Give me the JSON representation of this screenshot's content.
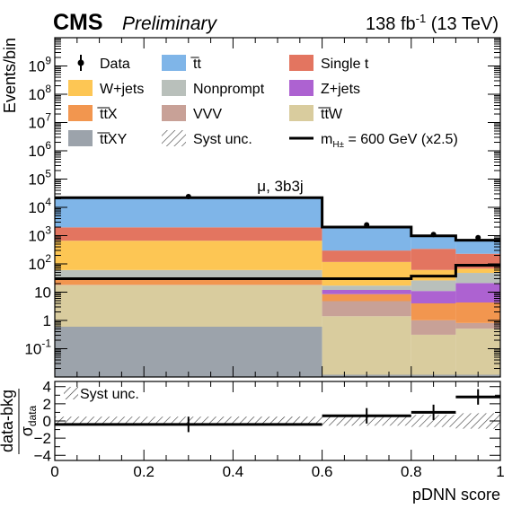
{
  "header": {
    "experiment": "CMS",
    "status": "Preliminary",
    "lumi_value": "138 fb",
    "lumi_exp": "-1",
    "lumi_energy": " (13 TeV)"
  },
  "chart_data": {
    "type": "bar",
    "subtype": "stacked-histogram",
    "channel_label": "μ, 3b3j",
    "xlabel": "pDNN score",
    "ylabel": "Events/bin",
    "xlim": [
      0,
      1
    ],
    "ylim": [
      0.01,
      10000000000
    ],
    "yscale": "log",
    "x_ticks": [
      {
        "value": 0,
        "label": "0"
      },
      {
        "value": 0.2,
        "label": "0.2"
      },
      {
        "value": 0.4,
        "label": "0.4"
      },
      {
        "value": 0.6,
        "label": "0.6"
      },
      {
        "value": 0.8,
        "label": "0.8"
      },
      {
        "value": 1,
        "label": "1"
      }
    ],
    "y_ticks": [
      {
        "value": 0.1,
        "label": "10",
        "exp": "-1"
      },
      {
        "value": 1,
        "label": "1",
        "exp": ""
      },
      {
        "value": 10,
        "label": "10",
        "exp": ""
      },
      {
        "value": 100,
        "label": "10",
        "exp": "2"
      },
      {
        "value": 1000,
        "label": "10",
        "exp": "3"
      },
      {
        "value": 10000,
        "label": "10",
        "exp": "4"
      },
      {
        "value": 100000,
        "label": "10",
        "exp": "5"
      },
      {
        "value": 1000000,
        "label": "10",
        "exp": "6"
      },
      {
        "value": 10000000,
        "label": "10",
        "exp": "7"
      },
      {
        "value": 100000000,
        "label": "10",
        "exp": "8"
      },
      {
        "value": 1000000000,
        "label": "10",
        "exp": "9"
      }
    ],
    "bins": [
      [
        0,
        0.6
      ],
      [
        0.6,
        0.8
      ],
      [
        0.8,
        0.9
      ],
      [
        0.9,
        1.0
      ]
    ],
    "stack": [
      {
        "name": "t̅t̅XY",
        "color": "#9ca3ab",
        "values": [
          0.6,
          0.012,
          0.012,
          0.012
        ]
      },
      {
        "name": "t̅t̅W",
        "color": "#d9cc9e",
        "values": [
          17,
          1.4,
          0.3,
          0.5
        ]
      },
      {
        "name": "VVV",
        "color": "#c8a197",
        "values": [
          0.5,
          3.4,
          0.7,
          0.3
        ]
      },
      {
        "name": "t̅t̅X",
        "color": "#f2964f",
        "values": [
          14,
          3.7,
          3.0,
          3.5
        ]
      },
      {
        "name": "Z+jets",
        "color": "#ad62d1",
        "values": [
          0.5,
          3.5,
          7.0,
          16.7
        ]
      },
      {
        "name": "Nonprompt",
        "color": "#b9c0bb",
        "values": [
          28,
          5,
          15,
          27
        ]
      },
      {
        "name": "W+jets",
        "color": "#fdc654",
        "values": [
          600,
          100,
          35,
          20
        ]
      },
      {
        "name": "Single t",
        "color": "#e37560",
        "values": [
          1300,
          180,
          280,
          160
        ]
      },
      {
        "name": "t̅t",
        "color": "#7fb5e8",
        "values": [
          20000,
          1700,
          640,
          460
        ]
      }
    ],
    "signal": {
      "name": "m",
      "sub": "H±",
      "rest": " = 600 GeV (x2.5)",
      "color": "#000000",
      "values": [
        30,
        30,
        37,
        90
      ]
    },
    "data": {
      "name": "Data",
      "x": [
        0.3,
        0.7,
        0.85,
        0.95
      ],
      "values": [
        24000,
        2400,
        1100,
        850
      ]
    },
    "legend": {
      "placement": "top",
      "entries": [
        {
          "label": "Data",
          "kind": "data"
        },
        {
          "label": "t̅t",
          "kind": "fill",
          "color": "#7fb5e8"
        },
        {
          "label": "Single t",
          "kind": "fill",
          "color": "#e37560"
        },
        {
          "label": "W+jets",
          "kind": "fill",
          "color": "#fdc654"
        },
        {
          "label": "Nonprompt",
          "kind": "fill",
          "color": "#b9c0bb"
        },
        {
          "label": "Z+jets",
          "kind": "fill",
          "color": "#ad62d1"
        },
        {
          "label": "t̅t̅X",
          "kind": "fill",
          "color": "#f2964f"
        },
        {
          "label": "VVV",
          "kind": "fill",
          "color": "#c8a197"
        },
        {
          "label": "t̅t̅W",
          "kind": "fill",
          "color": "#d9cc9e"
        },
        {
          "label": "t̅t̅XY",
          "kind": "fill",
          "color": "#9ca3ab"
        },
        {
          "label": "Syst unc.",
          "kind": "hatch"
        },
        {
          "label": "m",
          "sub": "H±",
          "rest": " = 600 GeV (x2.5)",
          "kind": "line"
        }
      ]
    },
    "ratio": {
      "ylabel_top": "data-bkg",
      "ylabel_bottom": "σ",
      "ylabel_sub": "data",
      "ylim": [
        -4.6,
        4.6
      ],
      "y_ticks": [
        {
          "value": -4,
          "label": "−4"
        },
        {
          "value": -2,
          "label": "−2"
        },
        {
          "value": 0,
          "label": "0"
        },
        {
          "value": 2,
          "label": "2"
        },
        {
          "value": 4,
          "label": "4"
        }
      ],
      "hatch_label": "Syst unc.",
      "hatch_bins": [
        [
          0,
          0.6,
          -0.5,
          0.5
        ],
        [
          0.6,
          0.8,
          -0.55,
          0.55
        ],
        [
          0.8,
          0.9,
          -0.7,
          0.7
        ],
        [
          0.9,
          1.0,
          -0.9,
          0.9
        ]
      ],
      "points": [
        {
          "x": 0.3,
          "xerr": 0.3,
          "y": -0.4,
          "yerr": 0.9
        },
        {
          "x": 0.7,
          "xerr": 0.1,
          "y": 0.6,
          "yerr": 0.9
        },
        {
          "x": 0.85,
          "xerr": 0.05,
          "y": 1.0,
          "yerr": 0.9
        },
        {
          "x": 0.95,
          "xerr": 0.05,
          "y": 2.8,
          "yerr": 0.9
        }
      ]
    }
  }
}
